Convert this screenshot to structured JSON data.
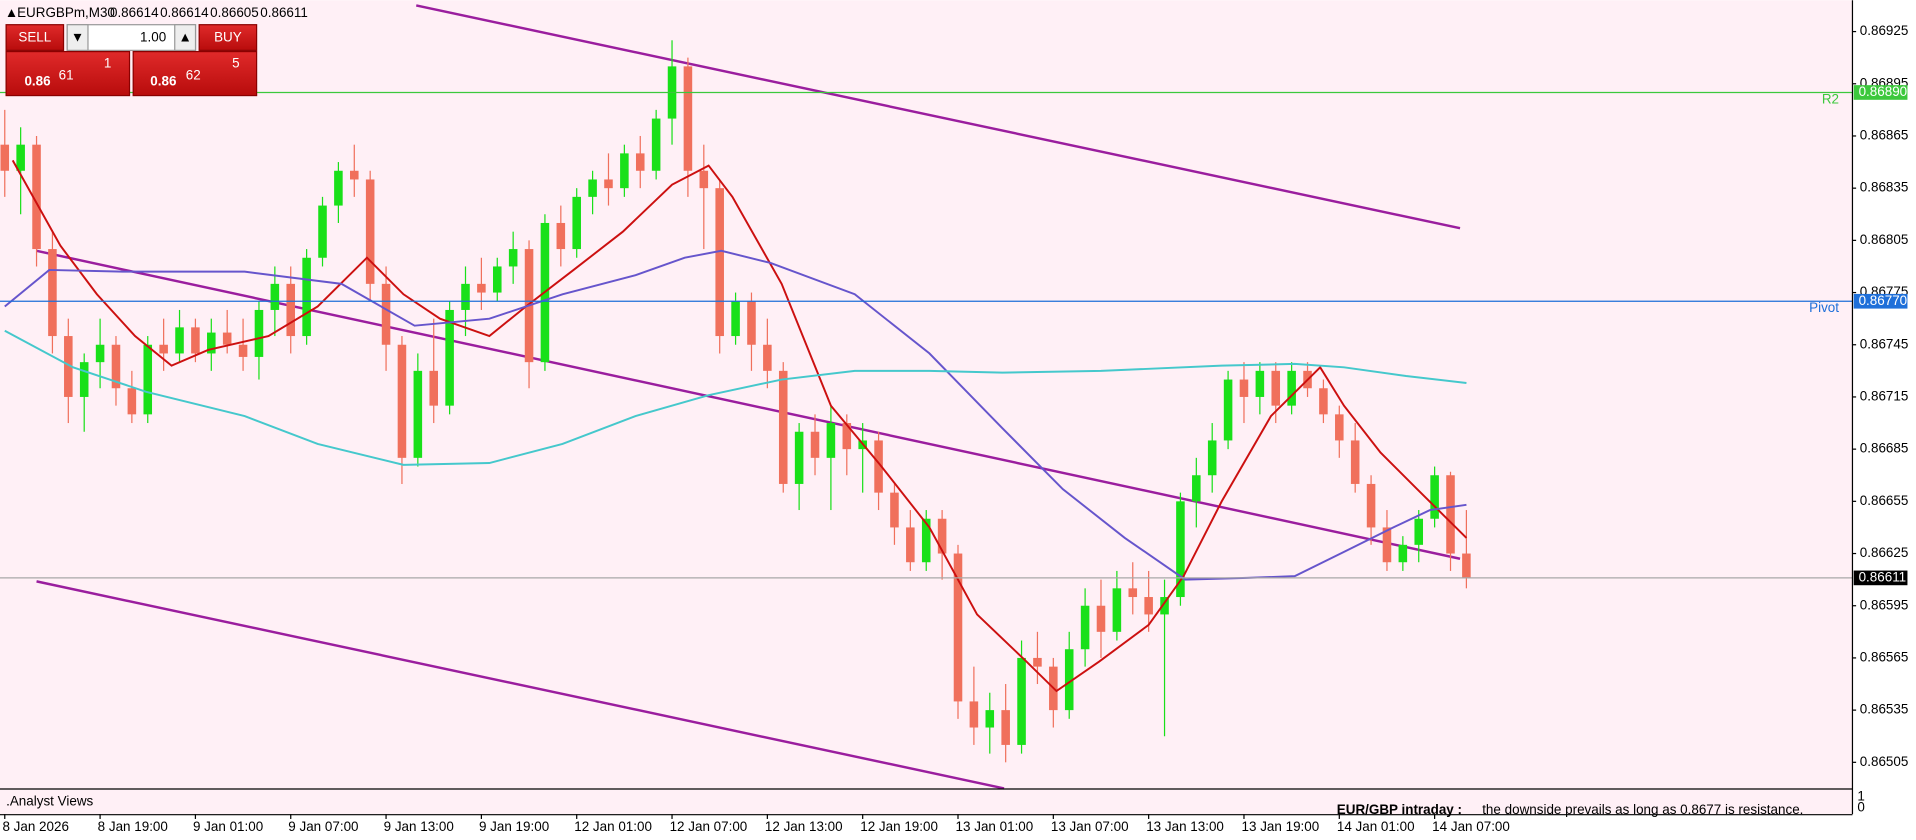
{
  "header": {
    "symbol": "EURGBPm,M30",
    "quote": [
      0.86614,
      0.86614,
      0.86605,
      0.86611
    ]
  },
  "trade_panel": {
    "sell": "SELL",
    "buy": "BUY",
    "lot": "1.00",
    "bid": [
      "0.86",
      "61",
      "1"
    ],
    "ask": [
      "0.86",
      "62",
      "5"
    ]
  },
  "indicator": {
    "name": ".Analyst Views",
    "ticks": [
      1,
      0
    ]
  },
  "note": {
    "title": "EUR/GBP intraday :",
    "text": "the downside prevails as long as 0.8677 is resistance."
  },
  "chart_data": {
    "type": "candlestick",
    "up_color": "#19e019",
    "down_color": "#f0705c",
    "xlim": [
      -0.3,
      116.3
    ],
    "ylim": [
      0.8649,
      0.86943
    ],
    "yticks": [
      0.86925,
      0.86895,
      0.86865,
      0.86835,
      0.86805,
      0.86775,
      0.86745,
      0.86715,
      0.86685,
      0.86655,
      0.86625,
      0.86595,
      0.86565,
      0.86535,
      0.86505
    ],
    "xticks": [
      {
        "value": 0,
        "label": "8 Jan 2026"
      },
      {
        "value": 6,
        "label": "8 Jan 19:00"
      },
      {
        "value": 12,
        "label": "9 Jan 01:00"
      },
      {
        "value": 18,
        "label": "9 Jan 07:00"
      },
      {
        "value": 24,
        "label": "9 Jan 13:00"
      },
      {
        "value": 30,
        "label": "9 Jan 19:00"
      },
      {
        "value": 36,
        "label": "12 Jan 01:00"
      },
      {
        "value": 42,
        "label": "12 Jan 07:00"
      },
      {
        "value": 48,
        "label": "12 Jan 13:00"
      },
      {
        "value": 54,
        "label": "12 Jan 19:00"
      },
      {
        "value": 60,
        "label": "13 Jan 01:00"
      },
      {
        "value": 66,
        "label": "13 Jan 07:00"
      },
      {
        "value": 72,
        "label": "13 Jan 13:00"
      },
      {
        "value": 78,
        "label": "13 Jan 19:00"
      },
      {
        "value": 84,
        "label": "14 Jan 01:00"
      },
      {
        "value": 90,
        "label": "14 Jan 07:00"
      }
    ],
    "ohlc": [
      [
        0.8686,
        0.8688,
        0.8683,
        0.86845
      ],
      [
        0.86845,
        0.8687,
        0.8682,
        0.8686
      ],
      [
        0.8686,
        0.86865,
        0.8679,
        0.868
      ],
      [
        0.868,
        0.8681,
        0.8674,
        0.8675
      ],
      [
        0.8675,
        0.8676,
        0.867,
        0.86715
      ],
      [
        0.86715,
        0.8674,
        0.86695,
        0.86735
      ],
      [
        0.86735,
        0.8676,
        0.8672,
        0.86745
      ],
      [
        0.86745,
        0.8675,
        0.8671,
        0.8672
      ],
      [
        0.8672,
        0.8673,
        0.867,
        0.86705
      ],
      [
        0.86705,
        0.8675,
        0.867,
        0.86745
      ],
      [
        0.86745,
        0.8676,
        0.8673,
        0.8674
      ],
      [
        0.8674,
        0.86765,
        0.86735,
        0.86755
      ],
      [
        0.86755,
        0.8676,
        0.86735,
        0.8674
      ],
      [
        0.8674,
        0.8676,
        0.8673,
        0.86752
      ],
      [
        0.86752,
        0.86765,
        0.8674,
        0.86745
      ],
      [
        0.86745,
        0.8676,
        0.8673,
        0.86738
      ],
      [
        0.86738,
        0.8677,
        0.86725,
        0.86765
      ],
      [
        0.86765,
        0.8679,
        0.8675,
        0.8678
      ],
      [
        0.8678,
        0.8679,
        0.8674,
        0.8675
      ],
      [
        0.8675,
        0.868,
        0.86745,
        0.86795
      ],
      [
        0.86795,
        0.8683,
        0.8679,
        0.86825
      ],
      [
        0.86825,
        0.8685,
        0.86815,
        0.86845
      ],
      [
        0.86845,
        0.8686,
        0.8683,
        0.8684
      ],
      [
        0.8684,
        0.86845,
        0.8677,
        0.8678
      ],
      [
        0.8678,
        0.8679,
        0.8673,
        0.86745
      ],
      [
        0.86745,
        0.8675,
        0.86665,
        0.8668
      ],
      [
        0.8668,
        0.8674,
        0.86675,
        0.8673
      ],
      [
        0.8673,
        0.8676,
        0.867,
        0.8671
      ],
      [
        0.8671,
        0.8677,
        0.86705,
        0.86765
      ],
      [
        0.86765,
        0.8679,
        0.8675,
        0.8678
      ],
      [
        0.8678,
        0.86795,
        0.86765,
        0.86775
      ],
      [
        0.86775,
        0.86795,
        0.8677,
        0.8679
      ],
      [
        0.8679,
        0.8681,
        0.8678,
        0.868
      ],
      [
        0.868,
        0.86805,
        0.8672,
        0.86735
      ],
      [
        0.86735,
        0.8682,
        0.8673,
        0.86815
      ],
      [
        0.86815,
        0.86825,
        0.8679,
        0.868
      ],
      [
        0.868,
        0.86835,
        0.86795,
        0.8683
      ],
      [
        0.8683,
        0.86845,
        0.8682,
        0.8684
      ],
      [
        0.8684,
        0.86855,
        0.86825,
        0.86835
      ],
      [
        0.86835,
        0.8686,
        0.8683,
        0.86855
      ],
      [
        0.86855,
        0.86865,
        0.86835,
        0.86845
      ],
      [
        0.86845,
        0.8688,
        0.8684,
        0.86875
      ],
      [
        0.86875,
        0.8692,
        0.8686,
        0.86905
      ],
      [
        0.86905,
        0.8691,
        0.8683,
        0.86845
      ],
      [
        0.86845,
        0.8686,
        0.868,
        0.86835
      ],
      [
        0.86835,
        0.8684,
        0.8674,
        0.8675
      ],
      [
        0.8675,
        0.86775,
        0.86745,
        0.8677
      ],
      [
        0.8677,
        0.86775,
        0.8673,
        0.86745
      ],
      [
        0.86745,
        0.8676,
        0.8672,
        0.8673
      ],
      [
        0.8673,
        0.86735,
        0.8666,
        0.86665
      ],
      [
        0.86665,
        0.867,
        0.8665,
        0.86695
      ],
      [
        0.86695,
        0.86705,
        0.8667,
        0.8668
      ],
      [
        0.8668,
        0.8671,
        0.8665,
        0.867
      ],
      [
        0.867,
        0.86705,
        0.8667,
        0.86685
      ],
      [
        0.86685,
        0.867,
        0.8666,
        0.8669
      ],
      [
        0.8669,
        0.86695,
        0.8665,
        0.8666
      ],
      [
        0.8666,
        0.86665,
        0.8663,
        0.8664
      ],
      [
        0.8664,
        0.8665,
        0.86615,
        0.8662
      ],
      [
        0.8662,
        0.8665,
        0.86615,
        0.86645
      ],
      [
        0.86645,
        0.8665,
        0.8661,
        0.86625
      ],
      [
        0.86625,
        0.8663,
        0.8653,
        0.8654
      ],
      [
        0.8654,
        0.8656,
        0.86515,
        0.86525
      ],
      [
        0.86525,
        0.86545,
        0.8651,
        0.86535
      ],
      [
        0.86535,
        0.8655,
        0.86505,
        0.86515
      ],
      [
        0.86515,
        0.86575,
        0.8651,
        0.86565
      ],
      [
        0.86565,
        0.8658,
        0.8655,
        0.8656
      ],
      [
        0.8656,
        0.86565,
        0.86525,
        0.86535
      ],
      [
        0.86535,
        0.8658,
        0.8653,
        0.8657
      ],
      [
        0.8657,
        0.86605,
        0.8656,
        0.86595
      ],
      [
        0.86595,
        0.8661,
        0.86565,
        0.8658
      ],
      [
        0.8658,
        0.86615,
        0.86575,
        0.86605
      ],
      [
        0.86605,
        0.8662,
        0.8659,
        0.866
      ],
      [
        0.866,
        0.86615,
        0.8658,
        0.8659
      ],
      [
        0.8659,
        0.8661,
        0.8652,
        0.866
      ],
      [
        0.866,
        0.8666,
        0.86595,
        0.86655
      ],
      [
        0.86655,
        0.8668,
        0.8664,
        0.8667
      ],
      [
        0.8667,
        0.867,
        0.8666,
        0.8669
      ],
      [
        0.8669,
        0.8673,
        0.86685,
        0.86725
      ],
      [
        0.86725,
        0.86735,
        0.867,
        0.86715
      ],
      [
        0.86715,
        0.86735,
        0.86705,
        0.8673
      ],
      [
        0.8673,
        0.86735,
        0.867,
        0.8671
      ],
      [
        0.8671,
        0.86735,
        0.86705,
        0.8673
      ],
      [
        0.8673,
        0.86735,
        0.86715,
        0.8672
      ],
      [
        0.8672,
        0.86725,
        0.867,
        0.86705
      ],
      [
        0.86705,
        0.8671,
        0.8668,
        0.8669
      ],
      [
        0.8669,
        0.867,
        0.8666,
        0.86665
      ],
      [
        0.86665,
        0.8667,
        0.8663,
        0.8664
      ],
      [
        0.8664,
        0.8665,
        0.86615,
        0.8662
      ],
      [
        0.8662,
        0.86635,
        0.86615,
        0.8663
      ],
      [
        0.8663,
        0.8665,
        0.8662,
        0.86645
      ],
      [
        0.86645,
        0.86675,
        0.8664,
        0.8667
      ],
      [
        0.8667,
        0.86672,
        0.86615,
        0.86625
      ],
      [
        0.86625,
        0.8665,
        0.86605,
        0.86611
      ]
    ],
    "lines": [
      {
        "color": "#cc1010",
        "x": [
          0.5,
          3.5,
          5.8,
          8.2,
          10.5,
          12.8,
          16.6,
          19.7,
          22.8,
          25.1,
          27.4,
          30.5,
          32.8,
          35.8,
          38.9,
          42,
          44.3,
          45.8,
          48.9,
          52,
          55.1,
          58.2,
          61.2,
          64.3,
          66.2,
          68.9,
          72,
          74.2,
          76.6,
          79.7,
          82.8,
          84.3,
          86.6,
          88.9,
          92
        ],
        "values": [
          0.86851,
          0.86802,
          0.86774,
          0.8675,
          0.86733,
          0.86742,
          0.8675,
          0.86767,
          0.86795,
          0.86774,
          0.8676,
          0.8675,
          0.86767,
          0.86788,
          0.8681,
          0.86837,
          0.86848,
          0.8683,
          0.8678,
          0.8671,
          0.86676,
          0.8664,
          0.8659,
          0.86563,
          0.86546,
          0.86563,
          0.86584,
          0.86612,
          0.86655,
          0.86704,
          0.86732,
          0.8671,
          0.86683,
          0.86662,
          0.86634
        ]
      },
      {
        "color": "#6655cc",
        "x": [
          0,
          2.8,
          7.4,
          15.1,
          21.2,
          25.8,
          30.5,
          35.1,
          39.7,
          42.8,
          45.1,
          48.2,
          53.5,
          58.2,
          62.8,
          66.6,
          70.5,
          74.3,
          78.2,
          81.2,
          84.3,
          87.4,
          89.7,
          92
        ],
        "values": [
          0.86767,
          0.86788,
          0.86787,
          0.86787,
          0.8678,
          0.86756,
          0.8676,
          0.86774,
          0.86785,
          0.86795,
          0.86799,
          0.86792,
          0.86774,
          0.8674,
          0.86697,
          0.86662,
          0.86634,
          0.8661,
          0.86611,
          0.86612,
          0.86626,
          0.8664,
          0.8665,
          0.86653
        ]
      },
      {
        "color": "#45c8cc",
        "x": [
          0,
          4.3,
          8.9,
          15.1,
          19.7,
          25.1,
          30.5,
          35.1,
          39.7,
          44.3,
          48.9,
          53.5,
          58.2,
          62.8,
          69,
          76.6,
          81.2,
          84.3,
          88.2,
          92
        ],
        "values": [
          0.86753,
          0.86732,
          0.86718,
          0.86704,
          0.86688,
          0.86676,
          0.86677,
          0.86688,
          0.86704,
          0.86716,
          0.86725,
          0.8673,
          0.8673,
          0.86729,
          0.8673,
          0.86733,
          0.86734,
          0.86732,
          0.86727,
          0.86723
        ]
      }
    ],
    "trendline_color": "#9a1e9e",
    "trendlines": [
      {
        "x": [
          25.9,
          91.6
        ],
        "y": [
          0.8694,
          0.86812
        ]
      },
      {
        "x": [
          2,
          91.6
        ],
        "y": [
          0.86799,
          0.86622
        ]
      },
      {
        "x": [
          2,
          62.9
        ],
        "y": [
          0.86609,
          0.8649
        ]
      }
    ],
    "levels": [
      {
        "name": "R2",
        "price": 0.8689,
        "price_label": "0.86890",
        "color": "#3cc83c"
      },
      {
        "name": "Pivot",
        "price": 0.8677,
        "price_label": "0.86770",
        "color": "#1e6fd9"
      }
    ],
    "current": {
      "price": 0.86611,
      "color": "#000000",
      "line_color": "#a8a8a8"
    }
  }
}
